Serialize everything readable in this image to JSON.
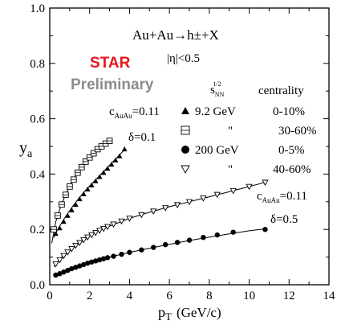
{
  "chart_data": {
    "type": "scatter",
    "title": "Au+Au→h±+X",
    "subtitle": "|η|<0.5",
    "xlabel_main": "p",
    "xlabel_sub": "T",
    "xlabel_unit": "(GeV/c)",
    "ylabel_main": "y",
    "ylabel_sub": "a",
    "xlim": [
      0,
      14
    ],
    "ylim": [
      0,
      1.0
    ],
    "x_ticks": [
      "0",
      "2",
      "4",
      "6",
      "8",
      "10",
      "12",
      "14"
    ],
    "y_ticks": [
      "0.0",
      "0.2",
      "0.4",
      "0.6",
      "0.8",
      "1.0"
    ],
    "watermark": {
      "line1": "STAR",
      "line2": "Preliminary",
      "line1_color": "#e8141b",
      "line2_color": "#8c8c8c"
    },
    "legend": {
      "header_sqrt": "s",
      "header_sup": "1/2",
      "header_sub": "NN",
      "header_centrality": "centrality",
      "entries": [
        {
          "marker": "triangle-up-filled",
          "energy": "9.2 GeV",
          "centrality": "0-10%"
        },
        {
          "marker": "square-crossed-open",
          "energy": "\"",
          "centrality": "30-60%"
        },
        {
          "marker": "circle-filled",
          "energy": "200 GeV",
          "centrality": "0-5%"
        },
        {
          "marker": "triangle-down-open",
          "energy": "\"",
          "centrality": "40-60%"
        }
      ]
    },
    "annotations": [
      {
        "id": "low-energy",
        "c_label": "c",
        "c_sub": "AuAu",
        "c_value": "=0.11",
        "delta_label": "δ=0.1"
      },
      {
        "id": "high-energy",
        "c_label": "c",
        "c_sub": "AuAu",
        "c_value": "=0.11",
        "delta_label": "δ=0.5"
      }
    ],
    "series": [
      {
        "marker": "triangle-up-filled",
        "x": [
          0.3,
          0.5,
          0.7,
          0.9,
          1.1,
          1.3,
          1.5,
          1.7,
          1.9,
          2.1,
          2.3,
          2.5,
          2.7,
          2.9,
          3.1,
          3.3,
          3.5,
          3.75
        ],
        "y": [
          0.185,
          0.205,
          0.228,
          0.25,
          0.27,
          0.29,
          0.31,
          0.328,
          0.345,
          0.36,
          0.375,
          0.39,
          0.405,
          0.42,
          0.435,
          0.45,
          0.465,
          0.49
        ]
      },
      {
        "marker": "square-crossed-open",
        "x": [
          0.2,
          0.4,
          0.6,
          0.8,
          1.0,
          1.2,
          1.4,
          1.6,
          1.8,
          2.0,
          2.2,
          2.4,
          2.6,
          2.8,
          3.0
        ],
        "y": [
          0.2,
          0.25,
          0.29,
          0.325,
          0.355,
          0.38,
          0.405,
          0.425,
          0.445,
          0.46,
          0.475,
          0.49,
          0.5,
          0.51,
          0.52
        ]
      },
      {
        "marker": "circle-filled",
        "x": [
          0.3,
          0.5,
          0.7,
          0.9,
          1.1,
          1.3,
          1.5,
          1.7,
          1.9,
          2.1,
          2.3,
          2.5,
          2.7,
          2.9,
          3.2,
          3.6,
          4.0,
          4.6,
          5.2,
          5.8,
          6.4,
          7.0,
          7.7,
          8.4,
          9.2,
          10.8
        ],
        "y": [
          0.035,
          0.04,
          0.046,
          0.052,
          0.058,
          0.063,
          0.068,
          0.073,
          0.078,
          0.082,
          0.086,
          0.09,
          0.094,
          0.098,
          0.103,
          0.11,
          0.117,
          0.126,
          0.135,
          0.145,
          0.153,
          0.161,
          0.171,
          0.18,
          0.19,
          0.2
        ]
      },
      {
        "marker": "triangle-down-open",
        "x": [
          0.3,
          0.5,
          0.7,
          0.9,
          1.1,
          1.3,
          1.5,
          1.7,
          1.9,
          2.1,
          2.3,
          2.5,
          2.7,
          2.9,
          3.2,
          3.6,
          4.0,
          4.6,
          5.2,
          5.8,
          6.4,
          7.0,
          7.7,
          8.4,
          9.2,
          10.0,
          10.8
        ],
        "y": [
          0.075,
          0.09,
          0.105,
          0.118,
          0.13,
          0.142,
          0.152,
          0.162,
          0.172,
          0.18,
          0.188,
          0.196,
          0.203,
          0.21,
          0.219,
          0.23,
          0.24,
          0.253,
          0.266,
          0.278,
          0.289,
          0.3,
          0.313,
          0.326,
          0.34,
          0.355,
          0.37
        ]
      }
    ],
    "curves": [
      {
        "x": [
          0.2,
          0.4,
          0.6,
          0.8,
          1.0,
          1.2,
          1.4,
          1.6,
          1.8,
          2.0,
          2.2,
          2.4,
          2.6,
          2.8,
          3.0,
          3.2,
          3.4,
          3.6,
          3.8
        ],
        "y": [
          0.17,
          0.2,
          0.224,
          0.247,
          0.268,
          0.288,
          0.307,
          0.325,
          0.342,
          0.357,
          0.372,
          0.387,
          0.402,
          0.417,
          0.432,
          0.447,
          0.462,
          0.477,
          0.492
        ]
      },
      {
        "x": [
          0.1,
          0.3,
          0.5,
          0.7,
          0.9,
          1.1,
          1.3,
          1.5,
          1.7,
          1.9,
          2.1,
          2.3,
          2.5,
          2.7,
          2.9,
          3.1
        ],
        "y": [
          0.15,
          0.228,
          0.272,
          0.31,
          0.342,
          0.37,
          0.394,
          0.416,
          0.436,
          0.454,
          0.47,
          0.485,
          0.498,
          0.51,
          0.52,
          0.53
        ]
      },
      {
        "x": [
          0.2,
          0.6,
          1.0,
          1.5,
          2.0,
          2.5,
          3.0,
          4.0,
          5.0,
          6.0,
          7.0,
          8.0,
          9.0,
          10.0,
          10.8
        ],
        "y": [
          0.03,
          0.043,
          0.056,
          0.068,
          0.08,
          0.09,
          0.1,
          0.117,
          0.132,
          0.146,
          0.16,
          0.172,
          0.184,
          0.195,
          0.202
        ]
      },
      {
        "x": [
          0.2,
          0.6,
          1.0,
          1.5,
          2.0,
          2.5,
          3.0,
          4.0,
          5.0,
          6.0,
          7.0,
          8.0,
          9.0,
          10.0,
          10.8
        ],
        "y": [
          0.065,
          0.1,
          0.124,
          0.15,
          0.176,
          0.196,
          0.212,
          0.24,
          0.262,
          0.282,
          0.3,
          0.318,
          0.336,
          0.355,
          0.37
        ]
      }
    ]
  }
}
